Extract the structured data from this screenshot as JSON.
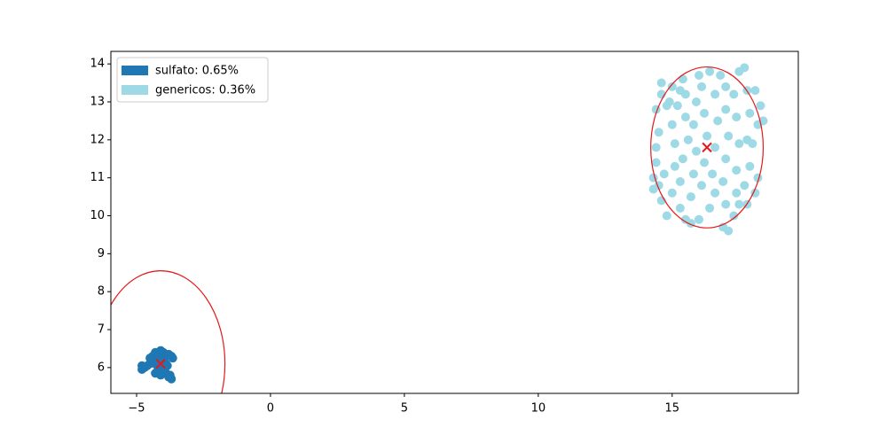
{
  "chart_data": {
    "type": "scatter",
    "xlim": [
      -5.96,
      19.71
    ],
    "ylim": [
      5.32,
      14.33
    ],
    "xticks": [
      {
        "value": -5,
        "label": "−5"
      },
      0,
      5,
      10,
      15
    ],
    "yticks": [
      6,
      7,
      8,
      9,
      10,
      11,
      12,
      13,
      14
    ],
    "grid": false,
    "legend": "upper left",
    "series": [
      {
        "name": "sulfato: 0.65%",
        "color": "#1f77b4",
        "x": [
          -4.8,
          -4.8,
          -4.7,
          -4.6,
          -4.5,
          -4.4,
          -4.4,
          -4.3,
          -4.2,
          -4.1,
          -4.0,
          -3.9,
          -3.8,
          -3.7,
          -3.65,
          -3.9,
          -4.0,
          -4.2,
          -4.3,
          -4.1,
          -3.9,
          -3.8,
          -3.7,
          -3.75,
          -4.0,
          -4.3,
          -4.5,
          -3.85,
          -4.15,
          -3.95
        ],
        "y": [
          6.05,
          5.95,
          6.0,
          6.05,
          6.1,
          6.2,
          6.3,
          6.4,
          6.35,
          6.45,
          6.4,
          6.3,
          6.35,
          6.3,
          6.25,
          6.1,
          6.0,
          6.0,
          5.85,
          5.8,
          5.85,
          5.75,
          5.7,
          5.8,
          6.15,
          6.1,
          6.25,
          6.05,
          6.25,
          5.95
        ]
      },
      {
        "name": "genericos: 0.36%",
        "color": "#9edae5",
        "x": [
          14.3,
          14.3,
          14.4,
          14.4,
          14.5,
          14.4,
          14.6,
          14.6,
          14.8,
          14.7,
          14.6,
          14.8,
          15.0,
          15.1,
          15.1,
          15.0,
          15.2,
          15.3,
          15.4,
          15.5,
          15.5,
          15.6,
          15.4,
          15.3,
          15.3,
          15.5,
          15.7,
          15.8,
          15.9,
          15.8,
          15.9,
          16.0,
          16.1,
          16.2,
          16.3,
          16.2,
          16.1,
          16.4,
          16.6,
          16.5,
          16.6,
          16.7,
          16.6,
          16.8,
          17.0,
          17.0,
          17.1,
          17.0,
          16.9,
          17.0,
          16.9,
          17.1,
          17.3,
          17.4,
          17.4,
          17.5,
          17.4,
          17.3,
          17.5,
          17.7,
          17.8,
          17.9,
          17.8,
          17.9,
          17.7,
          17.8,
          18.1,
          18.2,
          18.0,
          18.2,
          18.3,
          18.1,
          18.4,
          14.9,
          15.0,
          16.4,
          16.0,
          15.7,
          17.5,
          14.5
        ],
        "y": [
          11.0,
          10.7,
          11.4,
          11.8,
          12.2,
          12.8,
          13.2,
          13.5,
          12.9,
          11.1,
          10.4,
          10.0,
          10.6,
          11.3,
          11.9,
          12.4,
          12.9,
          13.3,
          13.6,
          13.2,
          12.6,
          12.0,
          11.5,
          10.9,
          10.2,
          9.9,
          10.5,
          11.1,
          11.7,
          12.4,
          13.0,
          13.7,
          13.4,
          12.7,
          12.1,
          11.4,
          10.8,
          10.2,
          10.6,
          11.1,
          11.8,
          12.5,
          13.2,
          13.7,
          13.4,
          12.8,
          12.1,
          11.5,
          10.9,
          10.3,
          9.7,
          9.6,
          10.0,
          10.6,
          11.2,
          11.9,
          12.6,
          13.2,
          13.8,
          13.9,
          13.3,
          12.7,
          12.0,
          11.3,
          10.8,
          10.3,
          10.6,
          11.0,
          11.9,
          12.4,
          12.9,
          13.3,
          12.5,
          13.0,
          13.4,
          13.8,
          9.9,
          9.8,
          10.3,
          10.8
        ]
      }
    ],
    "ellipses": [
      {
        "cx": -4.1,
        "cy": 6.1,
        "rx": 2.4,
        "ry": 2.45,
        "color": "#e31a1c"
      },
      {
        "cx": 16.3,
        "cy": 11.8,
        "rx": 2.1,
        "ry": 2.12,
        "color": "#e31a1c"
      }
    ]
  }
}
